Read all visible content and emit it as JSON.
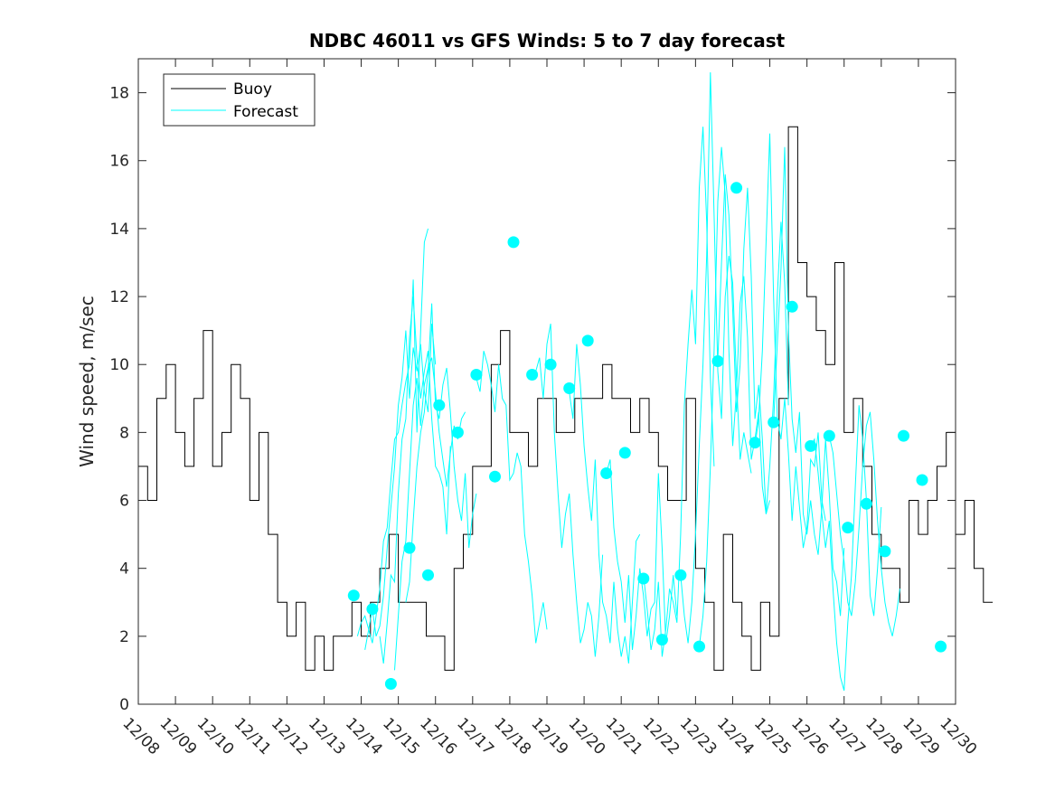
{
  "chart_data": {
    "type": "line",
    "title": "NDBC 46011 vs GFS Winds: 5 to 7 day forecast",
    "xlabel": "",
    "ylabel": "Wind speed, m/sec",
    "xlim": [
      0,
      22
    ],
    "ylim": [
      0,
      19
    ],
    "yticks": [
      0,
      2,
      4,
      6,
      8,
      10,
      12,
      14,
      16,
      18
    ],
    "xtick_labels": [
      "12/08",
      "12/09",
      "12/10",
      "12/11",
      "12/12",
      "12/13",
      "12/14",
      "12/15",
      "12/16",
      "12/17",
      "12/18",
      "12/19",
      "12/20",
      "12/21",
      "12/22",
      "12/23",
      "12/24",
      "12/25",
      "12/26",
      "12/27",
      "12/28",
      "12/29",
      "12/30"
    ],
    "grid": false,
    "legend": {
      "position": "top-left",
      "entries": [
        "Buoy",
        "Forecast"
      ]
    },
    "colors": {
      "buoy": "#000000",
      "forecast": "#00ffff",
      "axes": "#262626"
    },
    "series": [
      {
        "name": "Buoy",
        "color": "#000000",
        "x_step_days": 0.25,
        "values": [
          7,
          6,
          9,
          10,
          8,
          7,
          9,
          11,
          7,
          8,
          10,
          9,
          6,
          8,
          5,
          3,
          2,
          3,
          1,
          2,
          1,
          2,
          2,
          3,
          2,
          3,
          4,
          5,
          3,
          3,
          3,
          2,
          2,
          1,
          4,
          5,
          7,
          7,
          10,
          11,
          8,
          8,
          7,
          9,
          9,
          8,
          8,
          9,
          9,
          9,
          10,
          9,
          9,
          8,
          9,
          8,
          7,
          6,
          6,
          9,
          4,
          3,
          1,
          5,
          3,
          2,
          1,
          3,
          2,
          9,
          17,
          13,
          12,
          11,
          10,
          13,
          8,
          9,
          7,
          5,
          4,
          4,
          3,
          6,
          5,
          6,
          7,
          8,
          5,
          6,
          4,
          3
        ]
      },
      {
        "name": "Forecast",
        "color": "#00ffff",
        "markers": [
          {
            "x": 5.8,
            "y": 3.2
          },
          {
            "x": 6.3,
            "y": 2.8
          },
          {
            "x": 6.8,
            "y": 0.6
          },
          {
            "x": 7.3,
            "y": 4.6
          },
          {
            "x": 7.8,
            "y": 3.8
          },
          {
            "x": 8.1,
            "y": 8.8
          },
          {
            "x": 8.6,
            "y": 8.0
          },
          {
            "x": 9.1,
            "y": 9.7
          },
          {
            "x": 9.6,
            "y": 6.7
          },
          {
            "x": 10.1,
            "y": 13.6
          },
          {
            "x": 10.6,
            "y": 9.7
          },
          {
            "x": 11.1,
            "y": 10.0
          },
          {
            "x": 11.6,
            "y": 9.3
          },
          {
            "x": 12.1,
            "y": 10.7
          },
          {
            "x": 12.6,
            "y": 6.8
          },
          {
            "x": 13.1,
            "y": 7.4
          },
          {
            "x": 13.6,
            "y": 3.7
          },
          {
            "x": 14.1,
            "y": 1.9
          },
          {
            "x": 14.6,
            "y": 3.8
          },
          {
            "x": 15.1,
            "y": 1.7
          },
          {
            "x": 15.6,
            "y": 10.1
          },
          {
            "x": 16.1,
            "y": 15.2
          },
          {
            "x": 16.6,
            "y": 7.7
          },
          {
            "x": 17.1,
            "y": 8.3
          },
          {
            "x": 17.6,
            "y": 11.7
          },
          {
            "x": 18.1,
            "y": 7.6
          },
          {
            "x": 18.6,
            "y": 7.9
          },
          {
            "x": 19.1,
            "y": 5.2
          },
          {
            "x": 19.6,
            "y": 5.9
          },
          {
            "x": 20.1,
            "y": 4.5
          },
          {
            "x": 20.6,
            "y": 7.9
          },
          {
            "x": 21.1,
            "y": 6.6
          },
          {
            "x": 21.6,
            "y": 1.7
          }
        ],
        "lines": [
          {
            "x0": 5.9,
            "values": [
              2.0,
              2.4,
              2.6,
              2.2,
              1.8,
              2.6,
              3.4,
              4.8,
              5.2,
              6.6,
              7.8,
              8.0,
              8.8,
              9.5,
              10.0,
              12.5,
              8.0,
              11.0,
              13.6,
              14.0
            ]
          },
          {
            "x0": 6.1,
            "values": [
              1.6,
              2.2,
              2.8,
              2.0,
              2.3,
              3.2,
              4.6,
              5.8,
              7.0,
              8.8,
              9.6,
              11.0,
              9.0,
              10.5,
              9.8,
              10.6,
              9.2,
              8.6,
              11.2,
              10.0
            ]
          },
          {
            "x0": 6.5,
            "values": [
              2.0,
              1.2,
              2.4,
              3.8,
              3.6,
              6.2,
              7.8,
              8.4,
              10.8,
              12.0,
              10.2,
              9.0,
              9.8,
              10.4,
              8.4,
              7.0,
              6.8,
              6.4,
              5.0,
              7.6
            ]
          },
          {
            "x0": 6.9,
            "values": [
              1.0,
              2.6,
              4.2,
              4.8,
              6.8,
              8.8,
              9.6,
              8.2,
              9.4,
              9.9,
              10.2,
              9.2,
              8.0,
              7.2,
              6.4,
              7.4,
              8.2,
              7.8,
              8.4,
              8.6
            ]
          },
          {
            "x0": 7.2,
            "values": [
              3.0,
              3.6,
              5.4,
              7.0,
              8.0,
              8.6,
              9.8,
              11.8,
              8.8,
              8.4,
              9.4,
              9.9,
              8.6,
              7.0,
              6.0,
              5.4,
              6.8,
              4.6,
              5.6,
              6.2
            ]
          },
          {
            "x0": 9.1,
            "values": [
              9.6,
              9.2,
              10.4,
              10.0,
              9.4,
              8.6,
              10.0,
              9.0,
              8.8,
              6.6,
              6.8,
              7.4,
              7.0,
              5.0,
              4.2,
              3.2,
              1.8,
              2.4,
              3.0,
              2.2
            ]
          },
          {
            "x0": 10.6,
            "values": [
              9.6,
              9.8,
              10.2,
              9.0,
              10.6,
              11.2,
              8.0,
              6.2,
              4.6,
              5.6,
              6.2,
              4.4,
              3.0,
              1.8,
              2.2,
              3.0,
              2.6,
              1.4,
              2.6,
              4.4
            ]
          },
          {
            "x0": 11.6,
            "values": [
              9.2,
              8.4,
              10.6,
              9.4,
              7.6,
              6.4,
              5.4,
              7.2,
              4.4,
              3.0,
              2.6,
              1.8,
              3.6,
              2.2,
              1.4,
              2.0,
              1.2,
              3.0,
              4.8,
              5.0
            ]
          },
          {
            "x0": 12.6,
            "values": [
              6.8,
              7.2,
              5.2,
              4.2,
              3.6,
              2.4,
              3.8,
              1.6,
              2.6,
              4.0,
              3.2,
              2.0,
              2.8,
              3.0,
              6.8,
              4.6,
              1.8,
              2.6,
              3.8,
              2.6
            ]
          },
          {
            "x0": 13.6,
            "values": [
              3.8,
              2.8,
              1.6,
              2.2,
              3.6,
              1.4,
              2.2,
              3.4,
              3.0,
              2.4,
              5.0,
              8.8,
              10.6,
              12.2,
              10.6,
              15.2,
              17.0,
              14.2,
              9.6,
              7.0
            ]
          },
          {
            "x0": 14.6,
            "values": [
              3.8,
              2.6,
              1.8,
              3.0,
              5.0,
              7.6,
              10.0,
              13.2,
              18.6,
              14.4,
              9.8,
              8.4,
              12.0,
              13.2,
              12.4,
              9.6,
              7.2,
              8.0,
              7.4,
              6.8
            ]
          },
          {
            "x0": 15.1,
            "values": [
              1.7,
              2.6,
              4.2,
              7.0,
              10.4,
              14.8,
              16.4,
              15.0,
              10.4,
              7.6,
              9.2,
              11.8,
              12.6,
              10.8,
              7.2,
              7.8,
              8.6,
              6.4,
              5.6,
              6.0
            ]
          },
          {
            "x0": 15.6,
            "values": [
              10.1,
              13.0,
              15.6,
              14.4,
              11.6,
              8.6,
              10.0,
              13.4,
              15.2,
              12.6,
              8.4,
              9.4,
              7.8,
              5.6,
              7.0,
              9.0,
              12.0,
              14.2,
              12.4,
              8.8
            ]
          },
          {
            "x0": 16.6,
            "values": [
              7.6,
              8.4,
              10.4,
              13.6,
              16.8,
              12.0,
              8.4,
              7.8,
              9.0,
              7.4,
              5.4,
              7.0,
              5.8,
              4.6,
              5.2,
              7.2,
              7.0,
              8.0,
              6.0,
              5.4
            ]
          },
          {
            "x0": 17.1,
            "values": [
              8.3,
              10.6,
              12.8,
              16.4,
              11.0,
              8.4,
              7.4,
              8.6,
              5.6,
              5.0,
              6.0,
              5.0,
              4.4,
              5.8,
              7.8,
              6.2,
              4.0,
              3.6,
              2.6,
              4.6
            ]
          },
          {
            "x0": 18.1,
            "values": [
              7.6,
              7.8,
              6.8,
              5.6,
              4.6,
              5.4,
              3.4,
              1.8,
              0.8,
              0.4,
              2.4,
              3.8,
              6.4,
              8.8,
              7.8,
              6.0,
              3.2,
              2.6,
              4.0,
              5.8
            ]
          },
          {
            "x0": 18.6,
            "values": [
              7.9,
              7.4,
              6.2,
              5.0,
              4.2,
              3.0,
              2.6,
              3.6,
              5.2,
              7.0,
              8.2,
              8.6,
              7.2,
              5.4,
              4.0,
              3.0,
              2.4,
              2.0,
              2.6,
              3.4
            ]
          }
        ]
      }
    ]
  }
}
